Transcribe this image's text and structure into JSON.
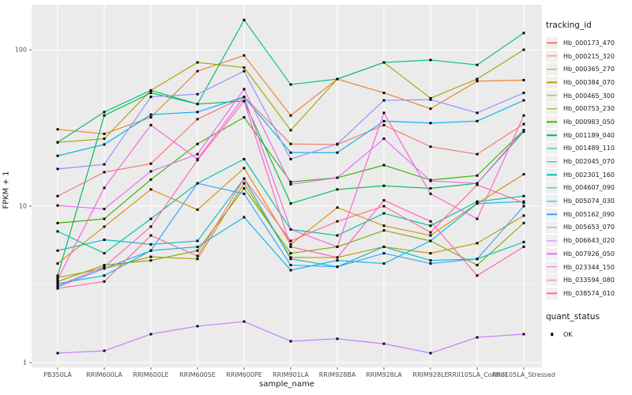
{
  "figure": {
    "background": "#FFFFFF",
    "panel_background": "#EBEBEB",
    "grid_color": "#FFFFFF",
    "tick_color": "#333333",
    "axis_text_color": "#4D4D4D",
    "point_color": "#000000"
  },
  "chart_data": {
    "type": "line",
    "title": "",
    "xlabel": "sample_name",
    "ylabel": "FPKM + 1",
    "y_scale": "log10",
    "y_ticks": [
      1,
      10,
      100
    ],
    "y_tick_labels": [
      "1",
      "10",
      "100"
    ],
    "y_minor_ticks": [
      3.1623,
      31.6228
    ],
    "ylim": [
      1,
      200
    ],
    "grid": "on",
    "legend_position": "right",
    "legend_title": "tracking_id",
    "legend2_title": "quant_status",
    "legend2_items": [
      {
        "label": "OK",
        "marker": "black-square"
      }
    ],
    "point_marker": "black-square",
    "categories": [
      "PB350LA",
      "RRIM600LA",
      "RRIM600LE",
      "RRIM600SE",
      "RRIM600PE",
      "RRIM901LA",
      "RRIM928BA",
      "RRIM928LA",
      "RRIM928LE",
      "RRII105LA_Control",
      "RRII105LA_Stressed"
    ],
    "series": [
      {
        "name": "Hb_000173_470",
        "color": "#F8766D",
        "values": [
          11.6,
          16.5,
          18.7,
          36,
          50,
          25,
          24.8,
          33,
          24,
          21.5,
          33.5
        ]
      },
      {
        "name": "Hb_000215_320",
        "color": "#EA8331",
        "values": [
          31,
          29,
          37,
          73,
          92,
          38,
          65,
          53,
          42,
          63,
          64
        ]
      },
      {
        "name": "Hb_000365_270",
        "color": "#D89000",
        "values": [
          4.3,
          7.4,
          12.8,
          9.5,
          17.5,
          5.7,
          9.8,
          7.5,
          6.5,
          10.4,
          16
        ]
      },
      {
        "name": "Hb_000384_070",
        "color": "#C09B00",
        "values": [
          3.5,
          4.0,
          4.75,
          4.6,
          14,
          4.7,
          4.7,
          5.5,
          5.0,
          5.8,
          8.7
        ]
      },
      {
        "name": "Hb_000465_300",
        "color": "#A3A500",
        "values": [
          25.6,
          27,
          55,
          83,
          77,
          30.6,
          65,
          83,
          49,
          65,
          100
        ]
      },
      {
        "name": "Hb_000753_230",
        "color": "#7CAE00",
        "values": [
          3.3,
          4.2,
          4.5,
          5.2,
          13,
          5.0,
          5.5,
          7.0,
          6.0,
          4.2,
          7.8
        ]
      },
      {
        "name": "Hb_000983_050",
        "color": "#39B600",
        "values": [
          7.8,
          8.3,
          14.8,
          25,
          37,
          14.3,
          15.2,
          18.3,
          14.7,
          15.7,
          30.6
        ]
      },
      {
        "name": "Hb_001189_040",
        "color": "#00BB4E",
        "values": [
          3.6,
          38,
          53,
          45,
          47,
          10.4,
          12.8,
          13.5,
          13,
          14,
          30
        ]
      },
      {
        "name": "Hb_001489_110",
        "color": "#00BF7D",
        "values": [
          25.6,
          40,
          55,
          45,
          155,
          60,
          65,
          83,
          86,
          80,
          128
        ]
      },
      {
        "name": "Hb_002045_070",
        "color": "#00C1A3",
        "values": [
          6.9,
          5.0,
          8.3,
          14,
          20,
          7.1,
          6.5,
          9.0,
          7.5,
          10.7,
          11.6
        ]
      },
      {
        "name": "Hb_002301_160",
        "color": "#00BFC4",
        "values": [
          5.2,
          6.1,
          5.7,
          6.0,
          15,
          4.6,
          4.1,
          5.5,
          4.5,
          4.6,
          5.9
        ]
      },
      {
        "name": "Hb_004607_090",
        "color": "#00BAE0",
        "values": [
          3.2,
          3.6,
          5.2,
          5.5,
          8.5,
          3.9,
          4.5,
          4.3,
          6.0,
          10.4,
          10.7
        ]
      },
      {
        "name": "Hb_005074_030",
        "color": "#00B0F6",
        "values": [
          21,
          24.8,
          38.5,
          40,
          50,
          22,
          22,
          35,
          34,
          35,
          47.5
        ]
      },
      {
        "name": "Hb_005162_090",
        "color": "#35A2FF",
        "values": [
          3.05,
          4.0,
          5.2,
          14,
          12,
          4.2,
          4.1,
          5.0,
          4.3,
          4.6,
          10
        ]
      },
      {
        "name": "Hb_005653_070",
        "color": "#9590FF",
        "values": [
          17.3,
          18.5,
          50,
          52,
          73,
          20,
          25,
          47.5,
          48,
          39.5,
          53
        ]
      },
      {
        "name": "Hb_006643_020",
        "color": "#C77CFF",
        "values": [
          1.15,
          1.19,
          1.52,
          1.71,
          1.83,
          1.37,
          1.42,
          1.32,
          1.15,
          1.45,
          1.52
        ]
      },
      {
        "name": "Hb_007926_050",
        "color": "#E76BF3",
        "values": [
          10.1,
          9.6,
          16.7,
          21.5,
          56,
          13.8,
          15.2,
          27,
          14.5,
          14,
          30.6
        ]
      },
      {
        "name": "Hb_023344_150",
        "color": "#FA62DB",
        "values": [
          3.4,
          13.1,
          33,
          20,
          50,
          7.1,
          5.5,
          39.5,
          12,
          8.3,
          38
        ]
      },
      {
        "name": "Hb_033594_080",
        "color": "#FF62BC",
        "values": [
          3.1,
          4.1,
          7.4,
          19.7,
          47,
          5.5,
          4.7,
          10.9,
          8.0,
          3.6,
          5.5
        ]
      },
      {
        "name": "Hb_038574_010",
        "color": "#FF6A98",
        "values": [
          2.98,
          3.3,
          6.5,
          4.8,
          15,
          6.0,
          8.0,
          10.0,
          6.8,
          13.7,
          10.5
        ]
      }
    ]
  }
}
